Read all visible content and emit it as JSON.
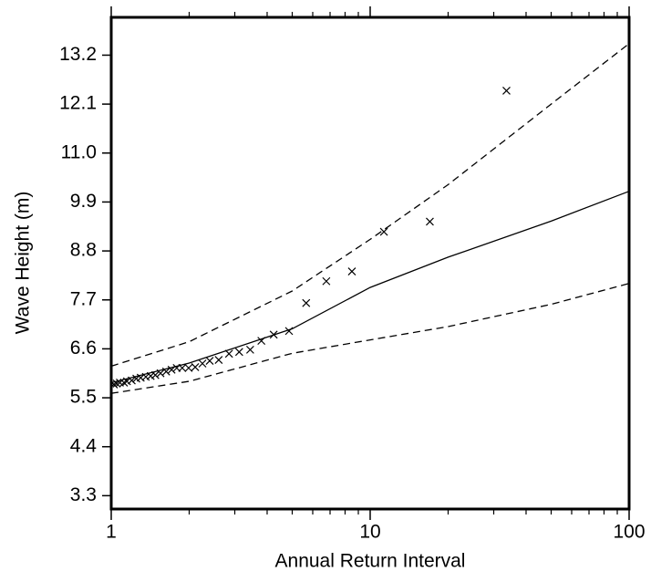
{
  "chart_data": {
    "type": "line",
    "x_label": "Annual Return Interval",
    "y_label": "Wave Height (m)",
    "x_scale": "log",
    "xlim": [
      1,
      100
    ],
    "xticks": [
      1,
      10,
      100
    ],
    "ylim": [
      3.0,
      14.05
    ],
    "yticks": [
      3.3,
      4.4,
      5.5,
      6.6,
      7.7,
      8.8,
      9.9,
      {
        "value": 11,
        "label": "11.0"
      },
      12.1,
      13.2
    ],
    "series": [
      {
        "kind": "line",
        "dash": false,
        "color": "#000000",
        "x": [
          1,
          2,
          5,
          10,
          20,
          50,
          100
        ],
        "values": [
          5.84,
          6.28,
          7.05,
          7.98,
          8.66,
          9.47,
          10.14
        ]
      },
      {
        "kind": "line",
        "dash": true,
        "color": "#000000",
        "x": [
          1,
          2,
          5,
          10,
          20,
          50,
          100
        ],
        "values": [
          6.21,
          6.76,
          7.9,
          9.06,
          10.29,
          12.1,
          13.46
        ]
      },
      {
        "kind": "line",
        "dash": true,
        "color": "#000000",
        "x": [
          1,
          2,
          5,
          10,
          20,
          50,
          100
        ],
        "values": [
          5.6,
          5.87,
          6.5,
          6.8,
          7.1,
          7.6,
          8.07
        ]
      },
      {
        "kind": "scatter",
        "marker": "x",
        "color": "#000000",
        "x": [
          1.024,
          1.05,
          1.08,
          1.12,
          1.15,
          1.2,
          1.25,
          1.3,
          1.36,
          1.42,
          1.48,
          1.55,
          1.63,
          1.71,
          1.79,
          1.88,
          1.99,
          2.11,
          2.25,
          2.4,
          2.6,
          2.85,
          3.12,
          3.44,
          3.8,
          4.24,
          4.86,
          5.66,
          6.77,
          8.5,
          11.3,
          17.0,
          33.6
        ],
        "values": [
          5.8,
          5.82,
          5.84,
          5.84,
          5.87,
          5.89,
          5.93,
          5.95,
          5.97,
          5.99,
          6.01,
          6.05,
          6.09,
          6.13,
          6.17,
          6.17,
          6.17,
          6.19,
          6.27,
          6.33,
          6.35,
          6.49,
          6.53,
          6.58,
          6.78,
          6.92,
          7.0,
          7.63,
          8.12,
          8.34,
          9.23,
          9.46,
          12.4
        ]
      }
    ]
  }
}
